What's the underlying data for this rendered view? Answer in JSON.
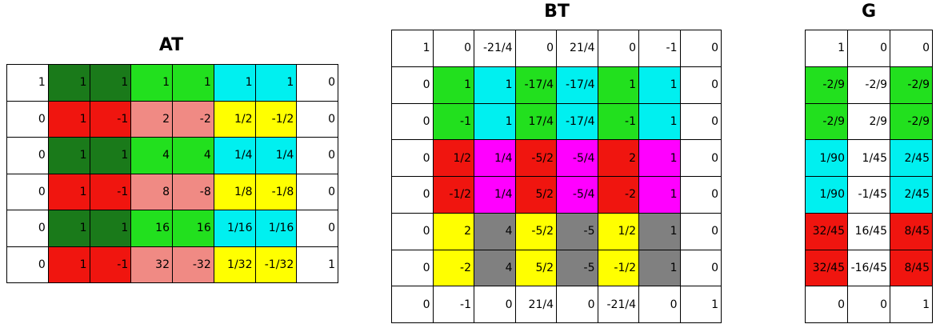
{
  "matrices": [
    {
      "key": "at",
      "title": "AT",
      "rows": [
        [
          {
            "v": "1",
            "c": "#ffffff"
          },
          {
            "v": "1",
            "c": "#1a7a1a"
          },
          {
            "v": "1",
            "c": "#1a7a1a"
          },
          {
            "v": "1",
            "c": "#22e01e"
          },
          {
            "v": "1",
            "c": "#22e01e"
          },
          {
            "v": "1",
            "c": "#00f0f0"
          },
          {
            "v": "1",
            "c": "#00f0f0"
          },
          {
            "v": "0",
            "c": "#ffffff"
          }
        ],
        [
          {
            "v": "0",
            "c": "#ffffff"
          },
          {
            "v": "1",
            "c": "#f0150f"
          },
          {
            "v": "-1",
            "c": "#f0150f"
          },
          {
            "v": "2",
            "c": "#f08a84"
          },
          {
            "v": "-2",
            "c": "#f08a84"
          },
          {
            "v": "1/2",
            "c": "#ffff00"
          },
          {
            "v": "-1/2",
            "c": "#ffff00"
          },
          {
            "v": "0",
            "c": "#ffffff"
          }
        ],
        [
          {
            "v": "0",
            "c": "#ffffff"
          },
          {
            "v": "1",
            "c": "#1a7a1a"
          },
          {
            "v": "1",
            "c": "#1a7a1a"
          },
          {
            "v": "4",
            "c": "#22e01e"
          },
          {
            "v": "4",
            "c": "#22e01e"
          },
          {
            "v": "1/4",
            "c": "#00f0f0"
          },
          {
            "v": "1/4",
            "c": "#00f0f0"
          },
          {
            "v": "0",
            "c": "#ffffff"
          }
        ],
        [
          {
            "v": "0",
            "c": "#ffffff"
          },
          {
            "v": "1",
            "c": "#f0150f"
          },
          {
            "v": "-1",
            "c": "#f0150f"
          },
          {
            "v": "8",
            "c": "#f08a84"
          },
          {
            "v": "-8",
            "c": "#f08a84"
          },
          {
            "v": "1/8",
            "c": "#ffff00"
          },
          {
            "v": "-1/8",
            "c": "#ffff00"
          },
          {
            "v": "0",
            "c": "#ffffff"
          }
        ],
        [
          {
            "v": "0",
            "c": "#ffffff"
          },
          {
            "v": "1",
            "c": "#1a7a1a"
          },
          {
            "v": "1",
            "c": "#1a7a1a"
          },
          {
            "v": "16",
            "c": "#22e01e"
          },
          {
            "v": "16",
            "c": "#22e01e"
          },
          {
            "v": "1/16",
            "c": "#00f0f0"
          },
          {
            "v": "1/16",
            "c": "#00f0f0"
          },
          {
            "v": "0",
            "c": "#ffffff"
          }
        ],
        [
          {
            "v": "0",
            "c": "#ffffff"
          },
          {
            "v": "1",
            "c": "#f0150f"
          },
          {
            "v": "-1",
            "c": "#f0150f"
          },
          {
            "v": "32",
            "c": "#f08a84"
          },
          {
            "v": "-32",
            "c": "#f08a84"
          },
          {
            "v": "1/32",
            "c": "#ffff00"
          },
          {
            "v": "-1/32",
            "c": "#ffff00"
          },
          {
            "v": "1",
            "c": "#ffffff"
          }
        ]
      ]
    },
    {
      "key": "bt",
      "title": "BT",
      "rows": [
        [
          {
            "v": "1",
            "c": "#ffffff"
          },
          {
            "v": "0",
            "c": "#ffffff"
          },
          {
            "v": "-21/4",
            "c": "#ffffff"
          },
          {
            "v": "0",
            "c": "#ffffff"
          },
          {
            "v": "21/4",
            "c": "#ffffff"
          },
          {
            "v": "0",
            "c": "#ffffff"
          },
          {
            "v": "-1",
            "c": "#ffffff"
          },
          {
            "v": "0",
            "c": "#ffffff"
          }
        ],
        [
          {
            "v": "0",
            "c": "#ffffff"
          },
          {
            "v": "1",
            "c": "#22e01e"
          },
          {
            "v": "1",
            "c": "#00f0f0"
          },
          {
            "v": "-17/4",
            "c": "#22e01e"
          },
          {
            "v": "-17/4",
            "c": "#00f0f0"
          },
          {
            "v": "1",
            "c": "#22e01e"
          },
          {
            "v": "1",
            "c": "#00f0f0"
          },
          {
            "v": "0",
            "c": "#ffffff"
          }
        ],
        [
          {
            "v": "0",
            "c": "#ffffff"
          },
          {
            "v": "-1",
            "c": "#22e01e"
          },
          {
            "v": "1",
            "c": "#00f0f0"
          },
          {
            "v": "17/4",
            "c": "#22e01e"
          },
          {
            "v": "-17/4",
            "c": "#00f0f0"
          },
          {
            "v": "-1",
            "c": "#22e01e"
          },
          {
            "v": "1",
            "c": "#00f0f0"
          },
          {
            "v": "0",
            "c": "#ffffff"
          }
        ],
        [
          {
            "v": "0",
            "c": "#ffffff"
          },
          {
            "v": "1/2",
            "c": "#f0150f"
          },
          {
            "v": "1/4",
            "c": "#ff00ff"
          },
          {
            "v": "-5/2",
            "c": "#f0150f"
          },
          {
            "v": "-5/4",
            "c": "#ff00ff"
          },
          {
            "v": "2",
            "c": "#f0150f"
          },
          {
            "v": "1",
            "c": "#ff00ff"
          },
          {
            "v": "0",
            "c": "#ffffff"
          }
        ],
        [
          {
            "v": "0",
            "c": "#ffffff"
          },
          {
            "v": "-1/2",
            "c": "#f0150f"
          },
          {
            "v": "1/4",
            "c": "#ff00ff"
          },
          {
            "v": "5/2",
            "c": "#f0150f"
          },
          {
            "v": "-5/4",
            "c": "#ff00ff"
          },
          {
            "v": "-2",
            "c": "#f0150f"
          },
          {
            "v": "1",
            "c": "#ff00ff"
          },
          {
            "v": "0",
            "c": "#ffffff"
          }
        ],
        [
          {
            "v": "0",
            "c": "#ffffff"
          },
          {
            "v": "2",
            "c": "#ffff00"
          },
          {
            "v": "4",
            "c": "#808080"
          },
          {
            "v": "-5/2",
            "c": "#ffff00"
          },
          {
            "v": "-5",
            "c": "#808080"
          },
          {
            "v": "1/2",
            "c": "#ffff00"
          },
          {
            "v": "1",
            "c": "#808080"
          },
          {
            "v": "0",
            "c": "#ffffff"
          }
        ],
        [
          {
            "v": "0",
            "c": "#ffffff"
          },
          {
            "v": "-2",
            "c": "#ffff00"
          },
          {
            "v": "4",
            "c": "#808080"
          },
          {
            "v": "5/2",
            "c": "#ffff00"
          },
          {
            "v": "-5",
            "c": "#808080"
          },
          {
            "v": "-1/2",
            "c": "#ffff00"
          },
          {
            "v": "1",
            "c": "#808080"
          },
          {
            "v": "0",
            "c": "#ffffff"
          }
        ],
        [
          {
            "v": "0",
            "c": "#ffffff"
          },
          {
            "v": "-1",
            "c": "#ffffff"
          },
          {
            "v": "0",
            "c": "#ffffff"
          },
          {
            "v": "21/4",
            "c": "#ffffff"
          },
          {
            "v": "0",
            "c": "#ffffff"
          },
          {
            "v": "-21/4",
            "c": "#ffffff"
          },
          {
            "v": "0",
            "c": "#ffffff"
          },
          {
            "v": "1",
            "c": "#ffffff"
          }
        ]
      ]
    },
    {
      "key": "g",
      "title": "G",
      "rows": [
        [
          {
            "v": "1",
            "c": "#ffffff"
          },
          {
            "v": "0",
            "c": "#ffffff"
          },
          {
            "v": "0",
            "c": "#ffffff"
          }
        ],
        [
          {
            "v": "-2/9",
            "c": "#22e01e"
          },
          {
            "v": "-2/9",
            "c": "#ffffff"
          },
          {
            "v": "-2/9",
            "c": "#22e01e"
          }
        ],
        [
          {
            "v": "-2/9",
            "c": "#22e01e"
          },
          {
            "v": "2/9",
            "c": "#ffffff"
          },
          {
            "v": "-2/9",
            "c": "#22e01e"
          }
        ],
        [
          {
            "v": "1/90",
            "c": "#00f0f0"
          },
          {
            "v": "1/45",
            "c": "#ffffff"
          },
          {
            "v": "2/45",
            "c": "#00f0f0"
          }
        ],
        [
          {
            "v": "1/90",
            "c": "#00f0f0"
          },
          {
            "v": "-1/45",
            "c": "#ffffff"
          },
          {
            "v": "2/45",
            "c": "#00f0f0"
          }
        ],
        [
          {
            "v": "32/45",
            "c": "#f0150f"
          },
          {
            "v": "16/45",
            "c": "#ffffff"
          },
          {
            "v": "8/45",
            "c": "#f0150f"
          }
        ],
        [
          {
            "v": "32/45",
            "c": "#f0150f"
          },
          {
            "v": "-16/45",
            "c": "#ffffff"
          },
          {
            "v": "8/45",
            "c": "#f0150f"
          }
        ],
        [
          {
            "v": "0",
            "c": "#ffffff"
          },
          {
            "v": "0",
            "c": "#ffffff"
          },
          {
            "v": "1",
            "c": "#ffffff"
          }
        ]
      ]
    }
  ]
}
